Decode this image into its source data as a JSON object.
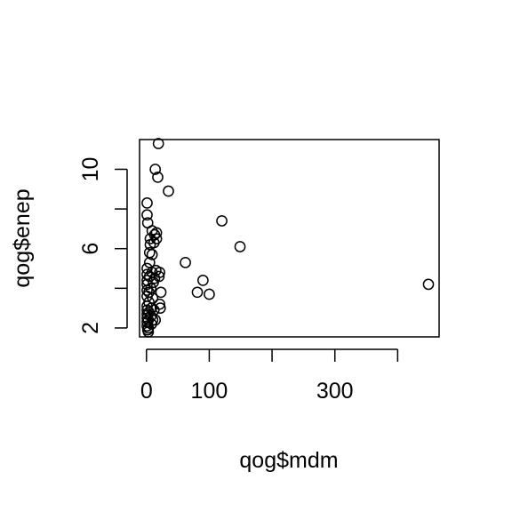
{
  "chart_data": {
    "type": "scatter",
    "title": "",
    "xlabel": "qog$mdm",
    "ylabel": "qog$enep",
    "xlim": [
      -11,
      466
    ],
    "ylim": [
      1.55,
      11.5
    ],
    "x_ticks": [
      0,
      100,
      200,
      300,
      400
    ],
    "x_tick_labels": [
      "0",
      "100",
      "",
      "300",
      ""
    ],
    "y_ticks": [
      2,
      4,
      6,
      8,
      10
    ],
    "y_tick_labels": [
      "2",
      "",
      "6",
      "",
      "10"
    ],
    "grid": false,
    "legend": "none",
    "marker": "open-circle",
    "colors": {
      "marker": "#000000",
      "axis": "#000000",
      "background": "#ffffff"
    },
    "points": [
      {
        "x": 1,
        "y": 8.3
      },
      {
        "x": 1,
        "y": 7.7
      },
      {
        "x": 2,
        "y": 7.3
      },
      {
        "x": 1,
        "y": 5.0
      },
      {
        "x": 1,
        "y": 4.7
      },
      {
        "x": 1,
        "y": 4.4
      },
      {
        "x": 1,
        "y": 4.2
      },
      {
        "x": 1,
        "y": 3.9
      },
      {
        "x": 1,
        "y": 3.6
      },
      {
        "x": 1,
        "y": 3.1
      },
      {
        "x": 1,
        "y": 2.9
      },
      {
        "x": 1,
        "y": 2.7
      },
      {
        "x": 1,
        "y": 2.5
      },
      {
        "x": 1,
        "y": 2.3
      },
      {
        "x": 1,
        "y": 2.1
      },
      {
        "x": 2,
        "y": 1.9
      },
      {
        "x": 3,
        "y": 1.8
      },
      {
        "x": 3,
        "y": 2.0
      },
      {
        "x": 3,
        "y": 2.4
      },
      {
        "x": 4,
        "y": 2.8
      },
      {
        "x": 4,
        "y": 3.3
      },
      {
        "x": 4,
        "y": 3.8
      },
      {
        "x": 5,
        "y": 4.6
      },
      {
        "x": 5,
        "y": 5.3
      },
      {
        "x": 5,
        "y": 5.8
      },
      {
        "x": 6,
        "y": 6.2
      },
      {
        "x": 6,
        "y": 6.5
      },
      {
        "x": 7,
        "y": 4.0
      },
      {
        "x": 7,
        "y": 2.6
      },
      {
        "x": 8,
        "y": 2.2
      },
      {
        "x": 8,
        "y": 3.0
      },
      {
        "x": 9,
        "y": 4.8
      },
      {
        "x": 9,
        "y": 5.7
      },
      {
        "x": 9,
        "y": 6.9
      },
      {
        "x": 10,
        "y": 3.5
      },
      {
        "x": 10,
        "y": 2.4
      },
      {
        "x": 11,
        "y": 4.3
      },
      {
        "x": 12,
        "y": 6.3
      },
      {
        "x": 12,
        "y": 2.9
      },
      {
        "x": 13,
        "y": 6.7
      },
      {
        "x": 13,
        "y": 4.5
      },
      {
        "x": 14,
        "y": 10.0
      },
      {
        "x": 14,
        "y": 2.4
      },
      {
        "x": 15,
        "y": 4.9
      },
      {
        "x": 16,
        "y": 6.5
      },
      {
        "x": 16,
        "y": 6.8
      },
      {
        "x": 18,
        "y": 9.6
      },
      {
        "x": 19,
        "y": 11.3
      },
      {
        "x": 20,
        "y": 4.6
      },
      {
        "x": 21,
        "y": 4.8
      },
      {
        "x": 21,
        "y": 3.2
      },
      {
        "x": 22,
        "y": 3.0
      },
      {
        "x": 23,
        "y": 3.8
      },
      {
        "x": 35,
        "y": 8.9
      },
      {
        "x": 62,
        "y": 5.3
      },
      {
        "x": 81,
        "y": 3.8
      },
      {
        "x": 90,
        "y": 4.4
      },
      {
        "x": 100,
        "y": 3.7
      },
      {
        "x": 120,
        "y": 7.4
      },
      {
        "x": 149,
        "y": 6.1
      },
      {
        "x": 449,
        "y": 4.2
      }
    ]
  }
}
